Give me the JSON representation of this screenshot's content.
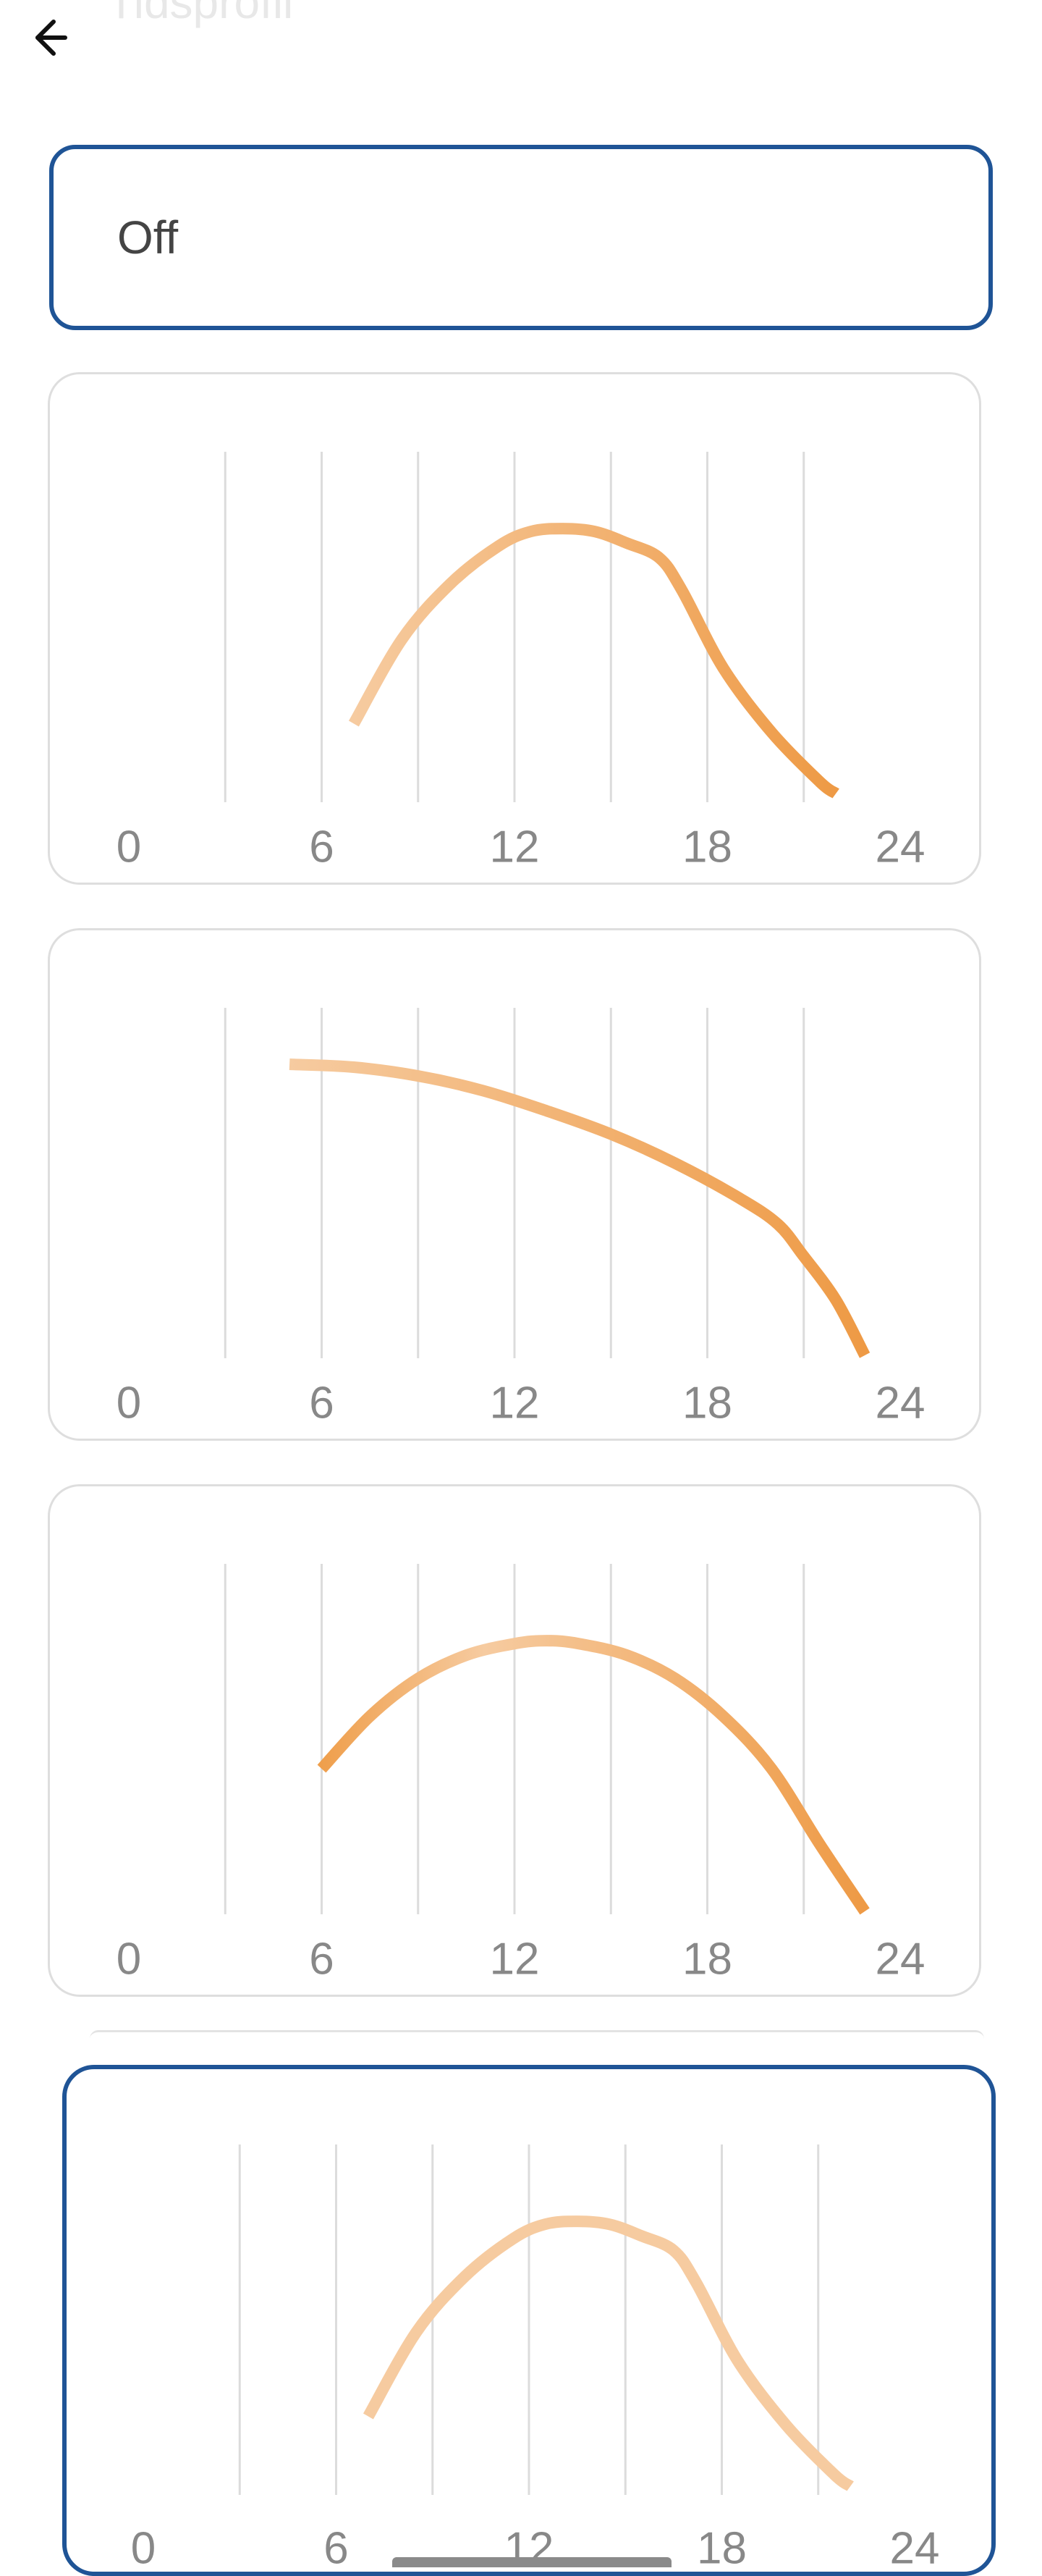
{
  "header": {
    "title": "Tidsprofil",
    "back_icon": "arrow-left-icon"
  },
  "off_option": {
    "label": "Off"
  },
  "colors": {
    "selected_border": "#1f5496",
    "card_border": "#dedede",
    "gridline": "#dcdcdc",
    "tick_label": "#888888",
    "curve_light": "#f6cba0",
    "curve_dark": "#ee9a45"
  },
  "chart_data": [
    {
      "type": "line",
      "xlim": [
        0,
        24
      ],
      "ylim": [
        0,
        1
      ],
      "ticks": [
        "0",
        "6",
        "12",
        "18",
        "24"
      ],
      "gradient": {
        "start": "#f6cba0",
        "end": "#ee9a45"
      },
      "x": [
        7.0,
        8.5,
        10,
        11.5,
        12.5,
        13.5,
        14.5,
        15.5,
        16.5,
        17.2,
        18.5,
        20,
        21.5,
        22.0
      ],
      "y": [
        0.26,
        0.55,
        0.74,
        0.87,
        0.92,
        0.93,
        0.92,
        0.88,
        0.83,
        0.72,
        0.45,
        0.23,
        0.06,
        0.02
      ]
    },
    {
      "type": "line",
      "xlim": [
        0,
        24
      ],
      "ylim": [
        0,
        1
      ],
      "ticks": [
        "0",
        "6",
        "12",
        "18",
        "24"
      ],
      "gradient": {
        "start": "#f6cba0",
        "end": "#ee9a45"
      },
      "x": [
        5.0,
        7,
        9,
        11,
        13,
        15,
        17,
        19,
        20.2,
        21,
        22,
        22.9
      ],
      "y": [
        1.0,
        0.99,
        0.96,
        0.91,
        0.84,
        0.76,
        0.66,
        0.54,
        0.45,
        0.34,
        0.19,
        0.0
      ]
    },
    {
      "type": "line",
      "xlim": [
        0,
        24
      ],
      "ylim": [
        0,
        1
      ],
      "ticks": [
        "0",
        "6",
        "12",
        "18",
        "24"
      ],
      "gradient": {
        "start": "#ef9f4c",
        "end": "#ee9a45",
        "mid": "#f6cba0"
      },
      "x": [
        6.0,
        7.5,
        9,
        10.5,
        12,
        13,
        14,
        15.5,
        17,
        18.5,
        20,
        21.5,
        22.9
      ],
      "y": [
        0.49,
        0.67,
        0.8,
        0.88,
        0.92,
        0.93,
        0.92,
        0.88,
        0.8,
        0.67,
        0.49,
        0.23,
        0.0
      ]
    },
    {
      "type": "line",
      "selected": true,
      "xlim": [
        0,
        24
      ],
      "ylim": [
        0,
        1
      ],
      "ticks": [
        "0",
        "6",
        "12",
        "18",
        "24"
      ],
      "gradient": {
        "start": "#f6cba0",
        "end": "#f6cba0"
      },
      "x": [
        7.0,
        8.5,
        10,
        11.5,
        12.5,
        13.5,
        14.5,
        15.5,
        16.5,
        17.2,
        18.5,
        20,
        21.5,
        22.0
      ],
      "y": [
        0.26,
        0.55,
        0.74,
        0.87,
        0.92,
        0.93,
        0.92,
        0.88,
        0.83,
        0.72,
        0.45,
        0.23,
        0.06,
        0.02
      ]
    }
  ]
}
